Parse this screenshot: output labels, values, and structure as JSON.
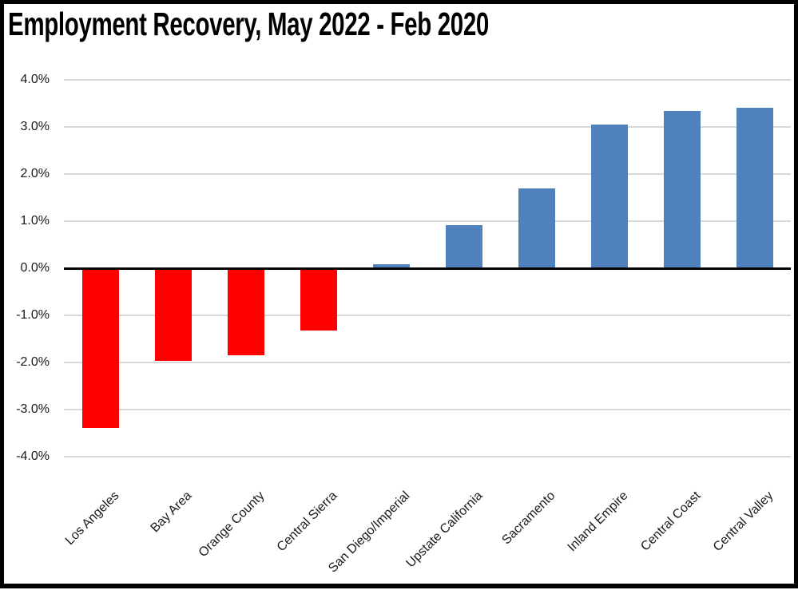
{
  "chart_data": {
    "type": "bar",
    "title": "Employment Recovery, May 2022 - Feb 2020",
    "categories": [
      "Los Angeles",
      "Bay Area",
      "Orange County",
      "Central Sierra",
      "San Diego/Imperial",
      "Upstate California",
      "Sacramento",
      "Inland Empire",
      "Central Coast",
      "Central Valley"
    ],
    "values": [
      -3.39,
      -1.96,
      -1.85,
      -1.32,
      0.08,
      0.92,
      1.69,
      3.05,
      3.34,
      3.41
    ],
    "unit": "%",
    "xlabel": "",
    "ylabel": "",
    "ylim": [
      -4.0,
      4.0
    ],
    "yticks": [
      {
        "value": 4.0,
        "label": "4.0%"
      },
      {
        "value": 3.0,
        "label": "3.0%"
      },
      {
        "value": 2.0,
        "label": "2.0%"
      },
      {
        "value": 1.0,
        "label": "1.0%"
      },
      {
        "value": 0.0,
        "label": "0.0%"
      },
      {
        "value": -1.0,
        "label": "-1.0%"
      },
      {
        "value": -2.0,
        "label": "-2.0%"
      },
      {
        "value": -3.0,
        "label": "-3.0%"
      },
      {
        "value": -4.0,
        "label": "-4.0%"
      }
    ],
    "grid": true,
    "legend": "none",
    "x_label_rotation_deg": 45,
    "colors": {
      "negative_bar": "#FF0000",
      "positive_bar": "#4F81BD",
      "gridline": "#D9D9D9",
      "axis_line": "#000000",
      "text": "#1A1A1A",
      "frame_border": "#000000"
    }
  }
}
